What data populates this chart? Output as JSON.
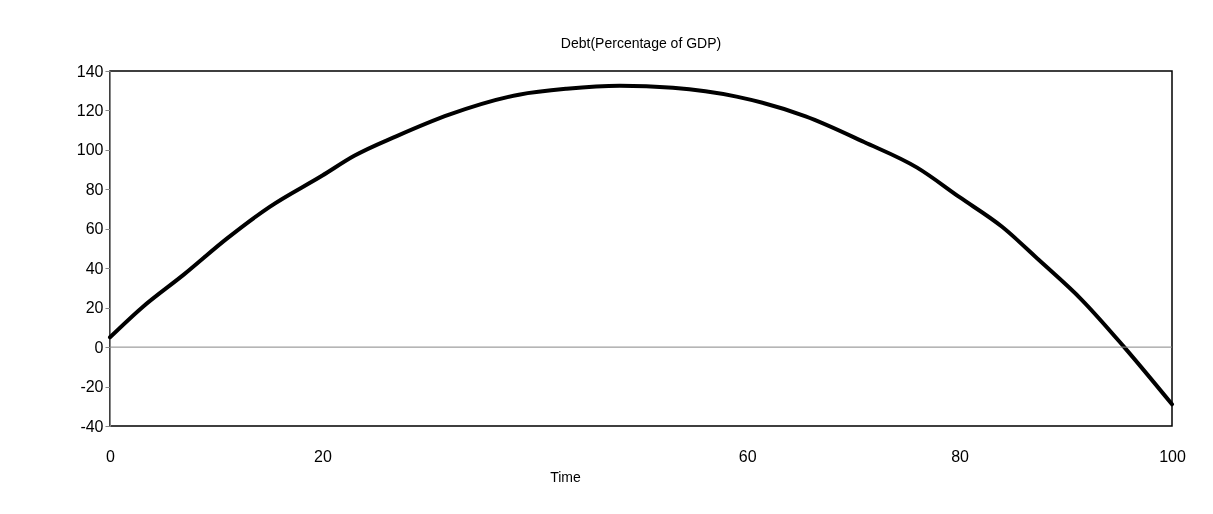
{
  "chart_data": {
    "type": "line",
    "title": "Debt(Percentage of GDP)",
    "xlabel": "Time",
    "x": [
      0,
      3,
      7,
      11,
      15,
      20,
      23,
      27,
      32,
      38.5,
      43,
      48,
      53,
      59,
      65.5,
      71,
      76,
      80,
      84,
      87.5,
      91.5,
      95.5,
      100
    ],
    "series": [
      {
        "color": "#000000",
        "values": [
          5,
          20,
          37,
          55,
          71,
          87,
          97,
          107,
          118,
          128,
          131,
          132.5,
          131.5,
          127,
          117,
          104,
          91,
          76,
          61,
          44,
          24,
          0,
          -29
        ]
      }
    ],
    "xlim": [
      0,
      100
    ],
    "xticks": [
      0,
      20,
      60,
      80,
      100
    ],
    "ylim": [
      -40,
      140
    ],
    "yticks": [
      -40,
      -20,
      0,
      20,
      40,
      60,
      80,
      100,
      120,
      140
    ],
    "ref_lines": [
      {
        "axis": "y",
        "value": 0,
        "color": "#868686"
      }
    ],
    "grid": false,
    "marker": "none",
    "line_style": "solid"
  }
}
